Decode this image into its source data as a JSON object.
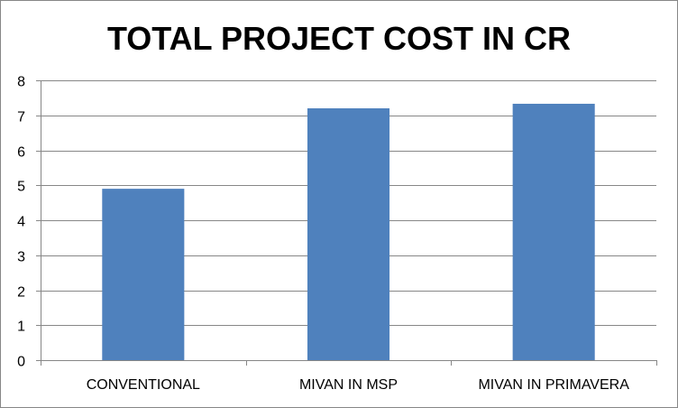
{
  "chart_data": {
    "type": "bar",
    "title": "TOTAL PROJECT COST IN CR",
    "xlabel": "",
    "ylabel": "",
    "categories": [
      "CONVENTIONAL",
      "MIVAN IN MSP",
      "MIVAN IN PRIMAVERA"
    ],
    "values": [
      4.9,
      7.2,
      7.33
    ],
    "ylim": [
      0,
      8
    ],
    "yticks": [
      0,
      1,
      2,
      3,
      4,
      5,
      6,
      7,
      8
    ],
    "ytick_labels": [
      "0",
      "1",
      "2",
      "3",
      "4",
      "5",
      "6",
      "7",
      "8"
    ],
    "grid": true,
    "legend": "none",
    "bar_color": "#4F81BD",
    "grid_color": "#878787"
  }
}
